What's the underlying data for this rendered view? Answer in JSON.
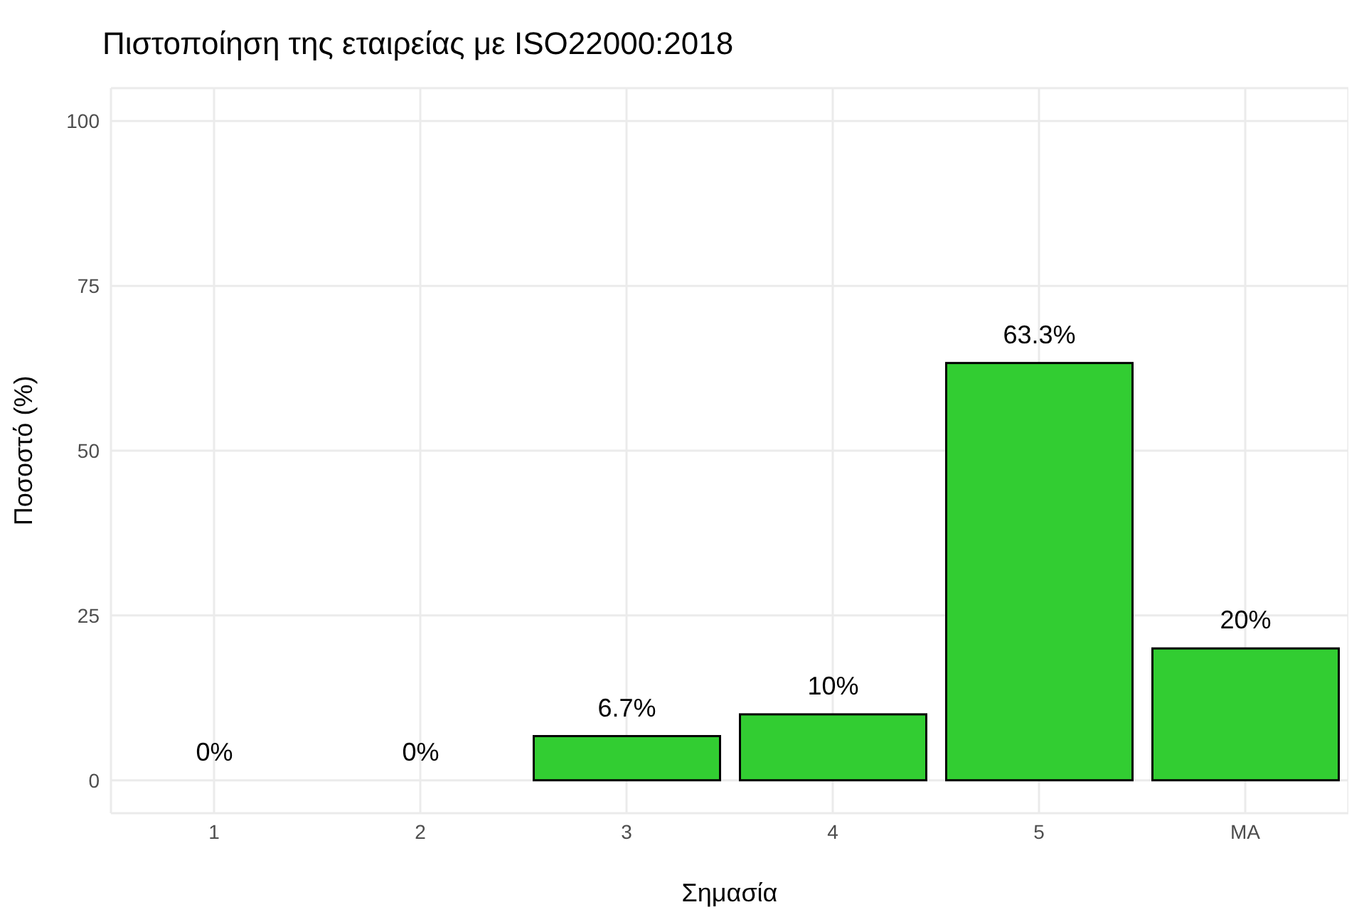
{
  "chart_data": {
    "type": "bar",
    "title": "Πιστοποίηση της εταιρείας με ISO22000:2018",
    "xlabel": "Σημασία",
    "ylabel": "Ποσοστό (%)",
    "categories": [
      "1",
      "2",
      "3",
      "4",
      "5",
      "ΜΑ"
    ],
    "values": [
      0,
      0,
      6.7,
      10,
      63.3,
      20
    ],
    "value_labels": [
      "0%",
      "0%",
      "6.7%",
      "10%",
      "63.3%",
      "20%"
    ],
    "color": "#32cd32",
    "ylim": [
      -5,
      105
    ],
    "yticks": [
      0,
      25,
      50,
      75,
      100
    ],
    "grid": true
  }
}
